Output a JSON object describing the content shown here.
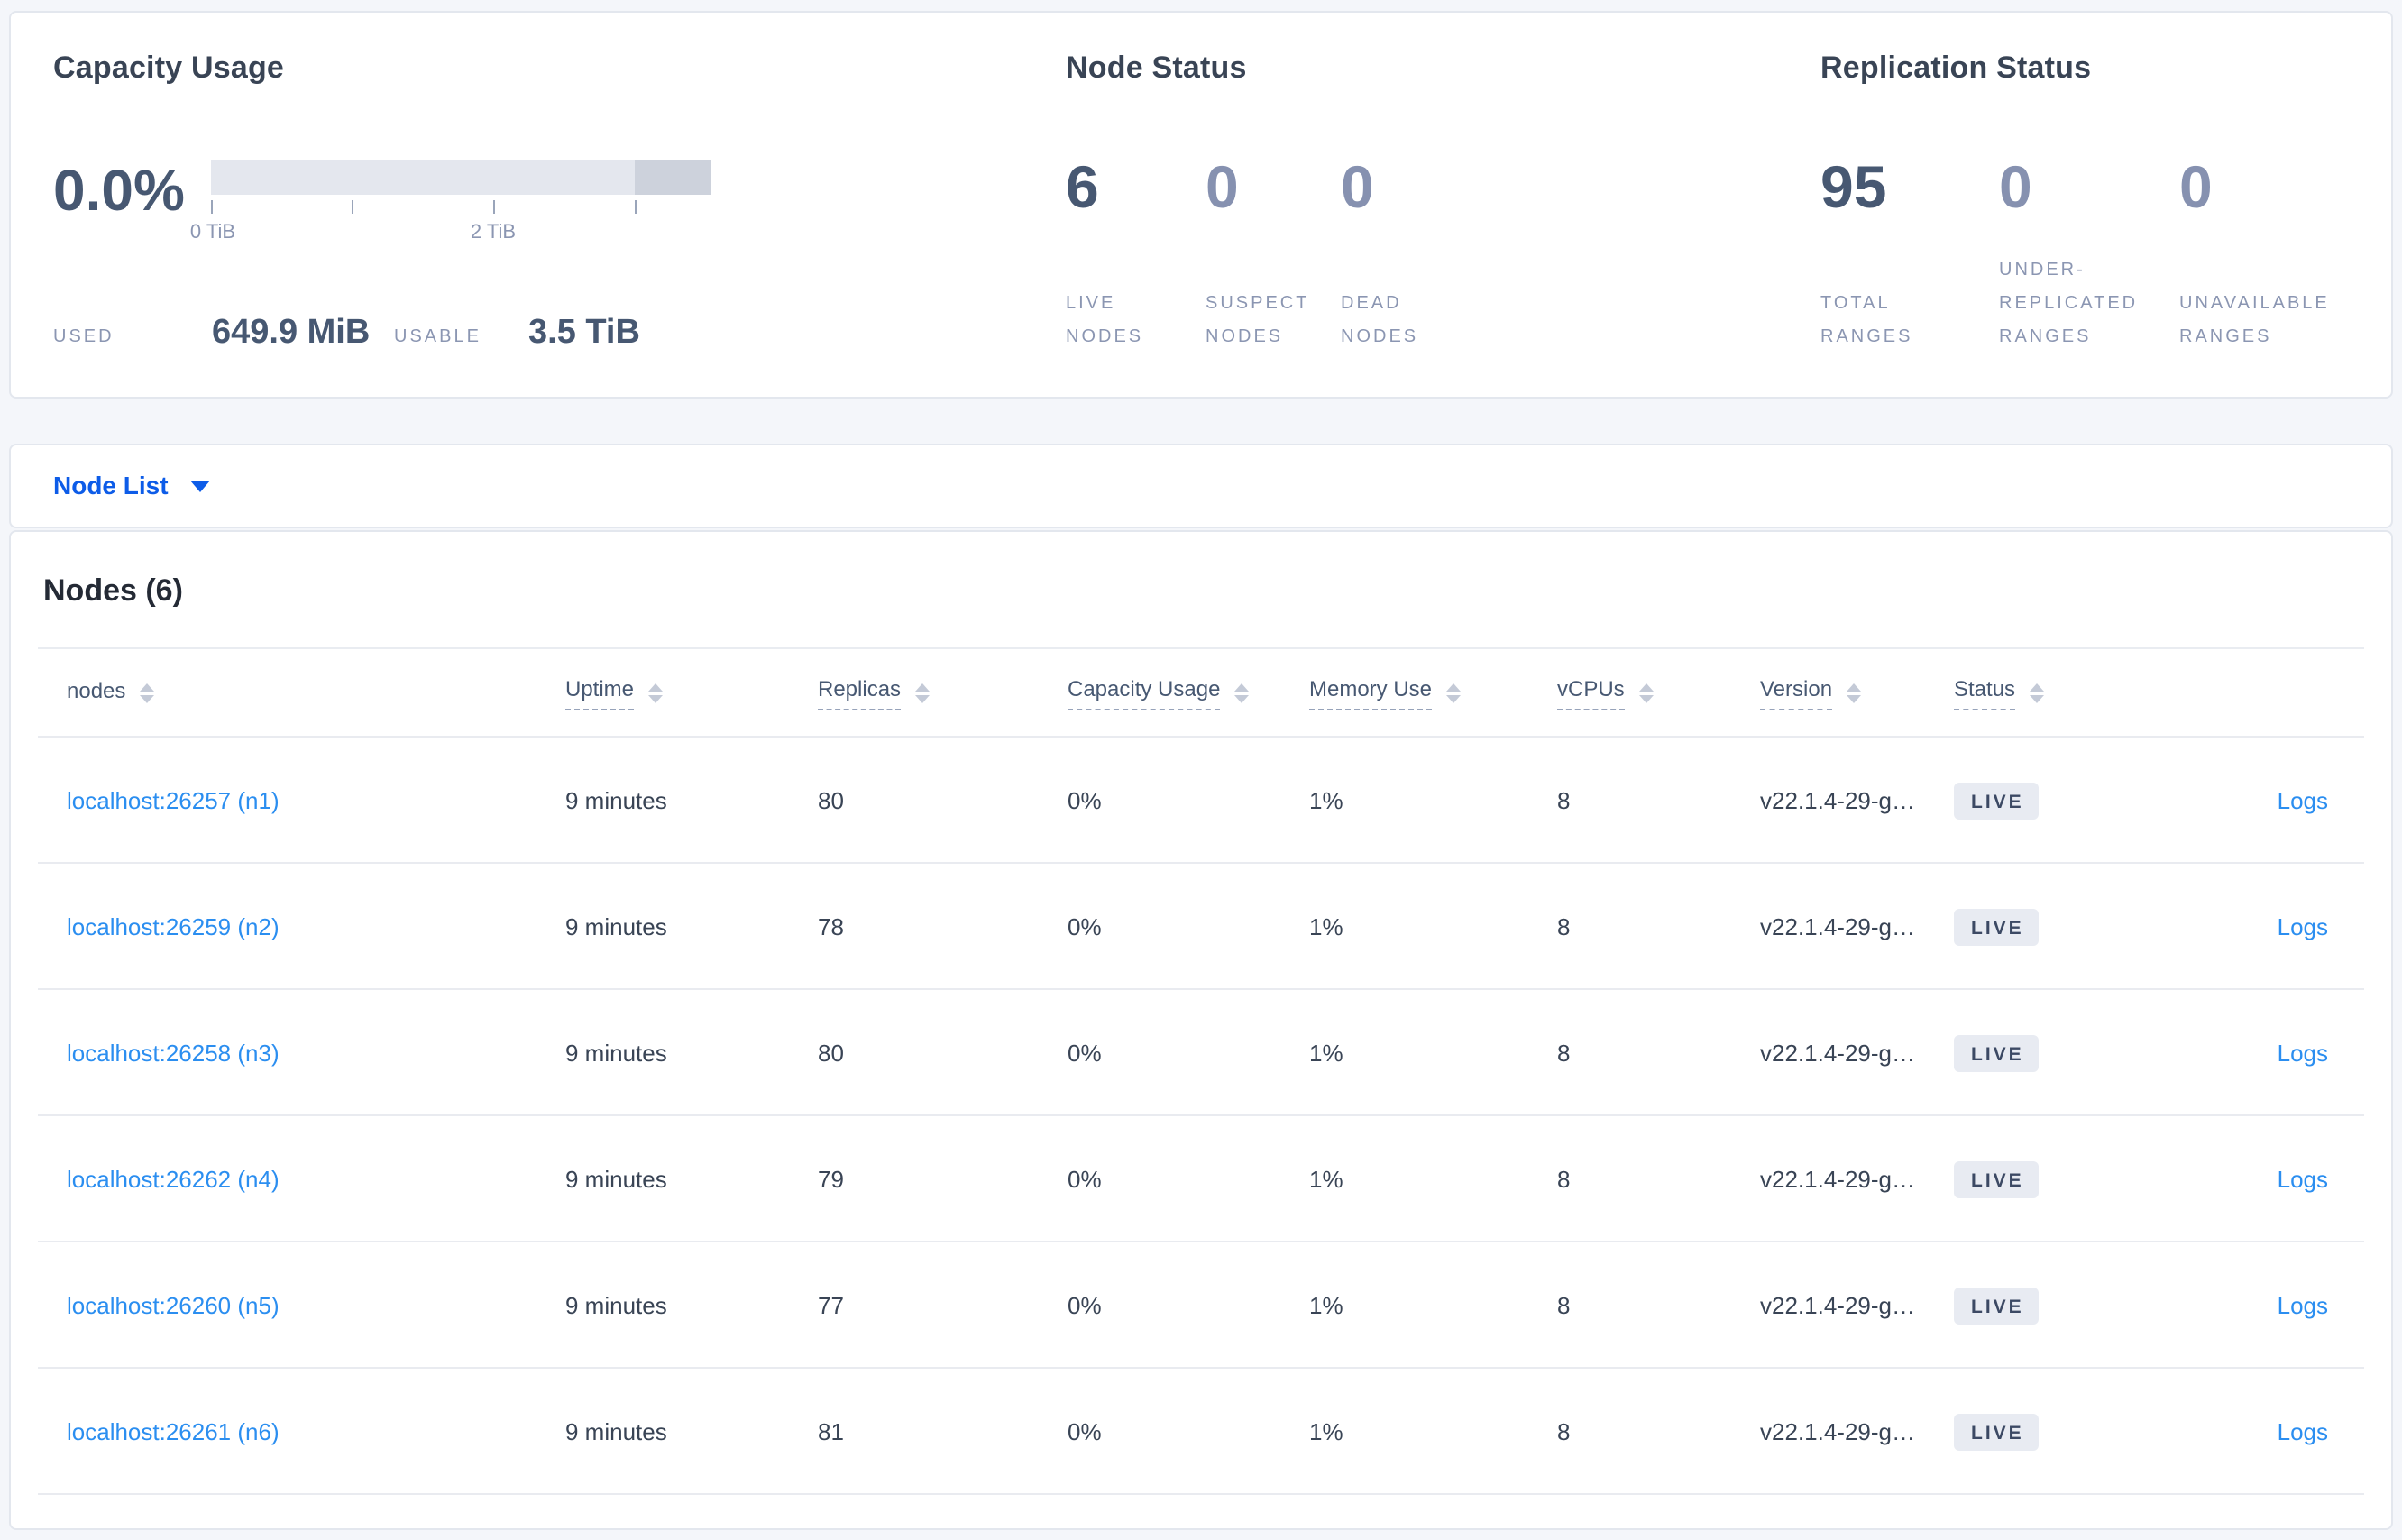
{
  "colors": {
    "page_background": "#f4f6fa",
    "accent_blue": "#0d5ce8",
    "link_blue": "#2b8ef0",
    "title_text": "#394455",
    "value_text": "#475872",
    "muted_text": "#8b96b2",
    "badge_background": "#e8ebf2",
    "badge_text": "#3c4964",
    "bar_fill": "#e4e7ee",
    "bar_fill_dark": "#cdd2dc"
  },
  "summary": {
    "capacity": {
      "title": "Capacity Usage",
      "percent": "0.0%",
      "tick_labels": [
        "0 TiB",
        "2 TiB"
      ],
      "used_label": "USED",
      "used_value": "649.9 MiB",
      "usable_label": "USABLE",
      "usable_value": "3.5 TiB"
    },
    "node_status": {
      "title": "Node Status",
      "metrics": [
        {
          "value": "6",
          "label": "LIVE NODES",
          "muted": false
        },
        {
          "value": "0",
          "label": "SUSPECT NODES",
          "muted": true
        },
        {
          "value": "0",
          "label": "DEAD NODES",
          "muted": true
        }
      ]
    },
    "replication": {
      "title": "Replication Status",
      "metrics": [
        {
          "value": "95",
          "label": "TOTAL RANGES",
          "muted": false
        },
        {
          "value": "0",
          "label": "UNDER-REPLICATED RANGES",
          "muted": true
        },
        {
          "value": "0",
          "label": "UNAVAILABLE RANGES",
          "muted": true
        }
      ]
    }
  },
  "view_selector": {
    "label": "Node List"
  },
  "table": {
    "title": "Nodes (6)",
    "columns": [
      "nodes",
      "Uptime",
      "Replicas",
      "Capacity Usage",
      "Memory Use",
      "vCPUs",
      "Version",
      "Status"
    ],
    "rows": [
      {
        "node": "localhost:26257 (n1)",
        "uptime": "9 minutes",
        "replicas": "80",
        "capacity": "0%",
        "memory": "1%",
        "vcpus": "8",
        "version": "v22.1.4-29-g…",
        "status": "LIVE",
        "logs": "Logs"
      },
      {
        "node": "localhost:26259 (n2)",
        "uptime": "9 minutes",
        "replicas": "78",
        "capacity": "0%",
        "memory": "1%",
        "vcpus": "8",
        "version": "v22.1.4-29-g…",
        "status": "LIVE",
        "logs": "Logs"
      },
      {
        "node": "localhost:26258 (n3)",
        "uptime": "9 minutes",
        "replicas": "80",
        "capacity": "0%",
        "memory": "1%",
        "vcpus": "8",
        "version": "v22.1.4-29-g…",
        "status": "LIVE",
        "logs": "Logs"
      },
      {
        "node": "localhost:26262 (n4)",
        "uptime": "9 minutes",
        "replicas": "79",
        "capacity": "0%",
        "memory": "1%",
        "vcpus": "8",
        "version": "v22.1.4-29-g…",
        "status": "LIVE",
        "logs": "Logs"
      },
      {
        "node": "localhost:26260 (n5)",
        "uptime": "9 minutes",
        "replicas": "77",
        "capacity": "0%",
        "memory": "1%",
        "vcpus": "8",
        "version": "v22.1.4-29-g…",
        "status": "LIVE",
        "logs": "Logs"
      },
      {
        "node": "localhost:26261 (n6)",
        "uptime": "9 minutes",
        "replicas": "81",
        "capacity": "0%",
        "memory": "1%",
        "vcpus": "8",
        "version": "v22.1.4-29-g…",
        "status": "LIVE",
        "logs": "Logs"
      }
    ]
  }
}
